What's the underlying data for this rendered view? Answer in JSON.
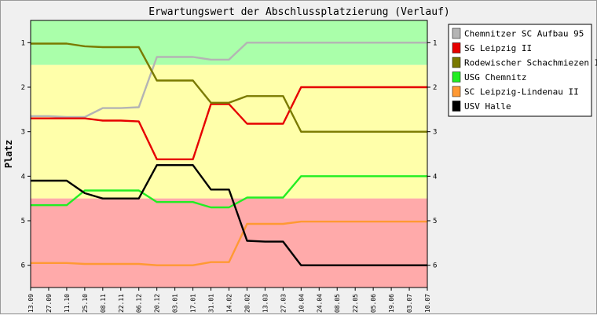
{
  "chart_data": {
    "type": "line",
    "title": "Erwartungswert der Abschlussplatzierung (Verlauf)",
    "ylabel": "Platz",
    "xlabel": "",
    "ylim": [
      6.5,
      0.5
    ],
    "y_ticks": [
      1,
      2,
      3,
      4,
      5,
      6
    ],
    "y_inverted": true,
    "grid": false,
    "legend_position": "right",
    "x": [
      "13.09",
      "27.09",
      "11.10",
      "25.10",
      "08.11",
      "22.11",
      "06.12",
      "20.12",
      "03.01",
      "17.01",
      "31.01",
      "14.02",
      "28.02",
      "13.03",
      "27.03",
      "10.04",
      "24.04",
      "08.05",
      "22.05",
      "05.06",
      "19.06",
      "03.07",
      "10.07"
    ],
    "bands": [
      {
        "from": 0.5,
        "to": 1.5,
        "color": "#aaffaa"
      },
      {
        "from": 1.5,
        "to": 4.5,
        "color": "#ffffaa"
      },
      {
        "from": 4.5,
        "to": 6.5,
        "color": "#ffaaaa"
      }
    ],
    "series": [
      {
        "name": "Chemnitzer SC Aufbau 95",
        "color": "#b4b4b4",
        "values": [
          2.65,
          2.65,
          2.67,
          2.67,
          2.47,
          2.47,
          2.45,
          1.32,
          1.32,
          1.32,
          1.38,
          1.38,
          1.0,
          1.0,
          1.0,
          1.0,
          1.0,
          1.0,
          1.0,
          1.0,
          1.0,
          1.0,
          1.0
        ]
      },
      {
        "name": "SG Leipzig II",
        "color": "#e60000",
        "values": [
          2.7,
          2.7,
          2.7,
          2.7,
          2.75,
          2.75,
          2.77,
          3.62,
          3.62,
          3.62,
          2.38,
          2.38,
          2.82,
          2.82,
          2.82,
          2.0,
          2.0,
          2.0,
          2.0,
          2.0,
          2.0,
          2.0,
          2.0
        ]
      },
      {
        "name": "Rodewischer Schachmiezen II",
        "color": "#7a7a00",
        "values": [
          1.02,
          1.02,
          1.02,
          1.08,
          1.1,
          1.1,
          1.1,
          1.85,
          1.85,
          1.85,
          2.35,
          2.35,
          2.2,
          2.2,
          2.2,
          3.0,
          3.0,
          3.0,
          3.0,
          3.0,
          3.0,
          3.0,
          3.0
        ]
      },
      {
        "name": "USG Chemnitz",
        "color": "#22ee22",
        "values": [
          4.65,
          4.65,
          4.65,
          4.32,
          4.32,
          4.32,
          4.32,
          4.58,
          4.58,
          4.58,
          4.7,
          4.7,
          4.48,
          4.48,
          4.48,
          4.0,
          4.0,
          4.0,
          4.0,
          4.0,
          4.0,
          4.0,
          4.0
        ]
      },
      {
        "name": "SC Leipzig-Lindenau II",
        "color": "#ff9933",
        "values": [
          5.95,
          5.95,
          5.95,
          5.97,
          5.97,
          5.97,
          5.97,
          6.0,
          6.0,
          6.0,
          5.93,
          5.93,
          5.07,
          5.07,
          5.07,
          5.02,
          5.02,
          5.02,
          5.02,
          5.02,
          5.02,
          5.02,
          5.02
        ]
      },
      {
        "name": "USV Halle",
        "color": "#000000",
        "values": [
          4.1,
          4.1,
          4.1,
          4.38,
          4.5,
          4.5,
          4.5,
          3.75,
          3.75,
          3.75,
          4.3,
          4.3,
          5.45,
          5.47,
          5.47,
          6.0,
          6.0,
          6.0,
          6.0,
          6.0,
          6.0,
          6.0,
          6.0
        ]
      }
    ]
  }
}
